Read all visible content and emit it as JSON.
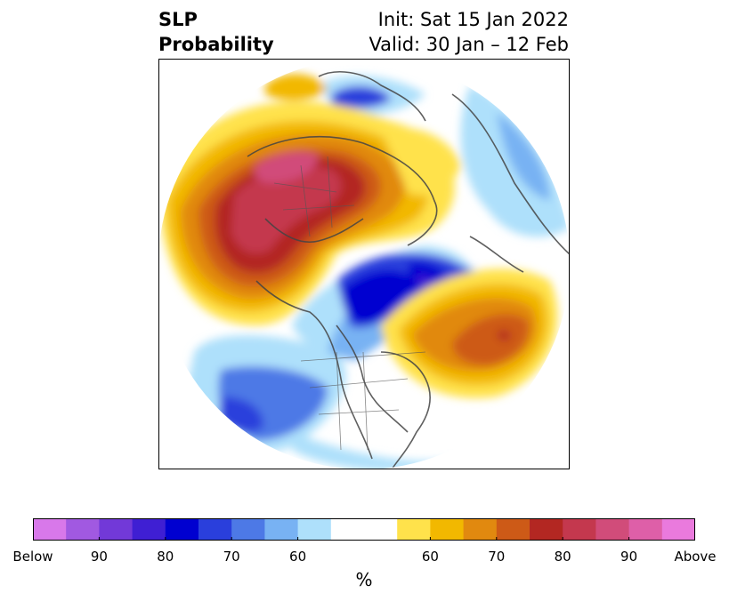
{
  "header": {
    "title_line1": "SLP",
    "title_line2": "Probability",
    "init": "Init: Sat 15 Jan 2022",
    "valid": "Valid: 30 Jan – 12 Feb"
  },
  "map": {
    "projection": "north-polar-stereographic",
    "field": "SLP probability",
    "palette": {
      "below": [
        "#d878ea",
        "#a159e1",
        "#7239d8",
        "#3f1fd3",
        "#0000d0",
        "#2a3fdc",
        "#4d79e6",
        "#78b2f3",
        "#aee0fb"
      ],
      "neutral": "#ffffff",
      "above": [
        "#ffe24b",
        "#f2b800",
        "#e1890f",
        "#cd5a17",
        "#b32722",
        "#c4384e",
        "#d14c7a",
        "#de5fa8",
        "#ea7add"
      ]
    }
  },
  "colorbar": {
    "colors": [
      "#d878ea",
      "#a159e1",
      "#7239d8",
      "#3f1fd3",
      "#0000d0",
      "#2a3fdc",
      "#4d79e6",
      "#78b2f3",
      "#aee0fb",
      "#ffffff",
      "#ffffff",
      "#ffe24b",
      "#f2b800",
      "#e1890f",
      "#cd5a17",
      "#b32722",
      "#c4384e",
      "#d14c7a",
      "#de5fa8",
      "#ea7add"
    ],
    "tick_labels": [
      "Below",
      "90",
      "80",
      "70",
      "60",
      "60",
      "70",
      "80",
      "90",
      "Above"
    ],
    "unit_label": "%"
  }
}
